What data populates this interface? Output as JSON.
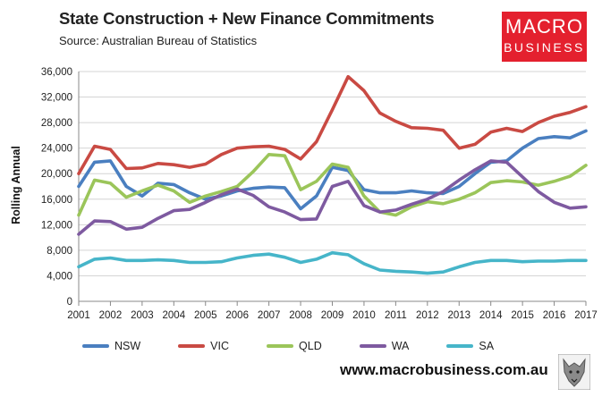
{
  "header": {
    "title": "State Construction + New Finance Commitments",
    "subtitle": "Source: Australian Bureau of Statistics"
  },
  "logo": {
    "line1": "MACRO",
    "line2": "BUSINESS"
  },
  "footer": {
    "url": "www.macrobusiness.com.au"
  },
  "chart_data": {
    "type": "line",
    "title": "State Construction + New Finance Commitments",
    "xlabel": "",
    "ylabel": "Rolling Annual",
    "xlim": [
      2001,
      2017
    ],
    "ylim": [
      0,
      36000
    ],
    "yticks": [
      0,
      4000,
      8000,
      12000,
      16000,
      20000,
      24000,
      28000,
      32000,
      36000
    ],
    "ytick_labels": [
      "0",
      "4,000",
      "8,000",
      "12,000",
      "16,000",
      "20,000",
      "24,000",
      "28,000",
      "32,000",
      "36,000"
    ],
    "xticks": [
      "2001",
      "2002",
      "2003",
      "2004",
      "2005",
      "2006",
      "2007",
      "2008",
      "2009",
      "2010",
      "2011",
      "2012",
      "2013",
      "2014",
      "2015",
      "2016",
      "2017"
    ],
    "grid": true,
    "legend_position": "bottom",
    "x": [
      2001.0,
      2001.5,
      2002.0,
      2002.5,
      2003.0,
      2003.5,
      2004.0,
      2004.5,
      2005.0,
      2005.5,
      2006.0,
      2006.5,
      2007.0,
      2007.5,
      2008.0,
      2008.5,
      2009.0,
      2009.5,
      2010.0,
      2010.5,
      2011.0,
      2011.5,
      2012.0,
      2012.5,
      2013.0,
      2013.5,
      2014.0,
      2014.5,
      2015.0,
      2015.5,
      2016.0,
      2016.5,
      2017.0
    ],
    "series": [
      {
        "name": "NSW",
        "color": "#4a7fc0",
        "values": [
          18000,
          21800,
          22000,
          18000,
          16500,
          18500,
          18300,
          17000,
          16000,
          16500,
          17300,
          17700,
          17900,
          17800,
          14500,
          16500,
          21000,
          20500,
          17500,
          17000,
          17000,
          17300,
          17000,
          16900,
          18000,
          20000,
          21800,
          22000,
          24000,
          25500,
          25800,
          25600,
          26700
        ]
      },
      {
        "name": "VIC",
        "color": "#c94a43",
        "values": [
          20000,
          24300,
          23800,
          20800,
          20900,
          21600,
          21400,
          21000,
          21500,
          23000,
          24000,
          24200,
          24300,
          23800,
          22300,
          25000,
          30000,
          35200,
          33000,
          29500,
          28200,
          27200,
          27100,
          26800,
          24000,
          24600,
          26500,
          27100,
          26600,
          28000,
          29000,
          29600,
          30500
        ]
      },
      {
        "name": "QLD",
        "color": "#9bc55a",
        "values": [
          13500,
          19000,
          18500,
          16300,
          17300,
          18200,
          17300,
          15500,
          16500,
          17200,
          18000,
          20300,
          23000,
          22800,
          17500,
          18800,
          21500,
          21000,
          16500,
          14000,
          13500,
          14800,
          15600,
          15300,
          16000,
          17000,
          18600,
          18900,
          18700,
          18200,
          18800,
          19600,
          21300
        ]
      },
      {
        "name": "WA",
        "color": "#7e5aa0",
        "values": [
          10500,
          12600,
          12500,
          11300,
          11600,
          13000,
          14200,
          14400,
          15500,
          16700,
          17600,
          16600,
          14800,
          14000,
          12800,
          12900,
          18000,
          18800,
          15000,
          14000,
          14300,
          15200,
          16000,
          17200,
          19000,
          20600,
          22000,
          21800,
          19500,
          17200,
          15500,
          14600,
          14800
        ]
      },
      {
        "name": "SA",
        "color": "#46b5c9",
        "values": [
          5400,
          6600,
          6800,
          6400,
          6400,
          6500,
          6400,
          6100,
          6100,
          6200,
          6800,
          7200,
          7400,
          6900,
          6100,
          6600,
          7600,
          7300,
          5900,
          4900,
          4700,
          4600,
          4400,
          4600,
          5400,
          6100,
          6400,
          6400,
          6200,
          6300,
          6300,
          6400,
          6400
        ]
      }
    ]
  }
}
